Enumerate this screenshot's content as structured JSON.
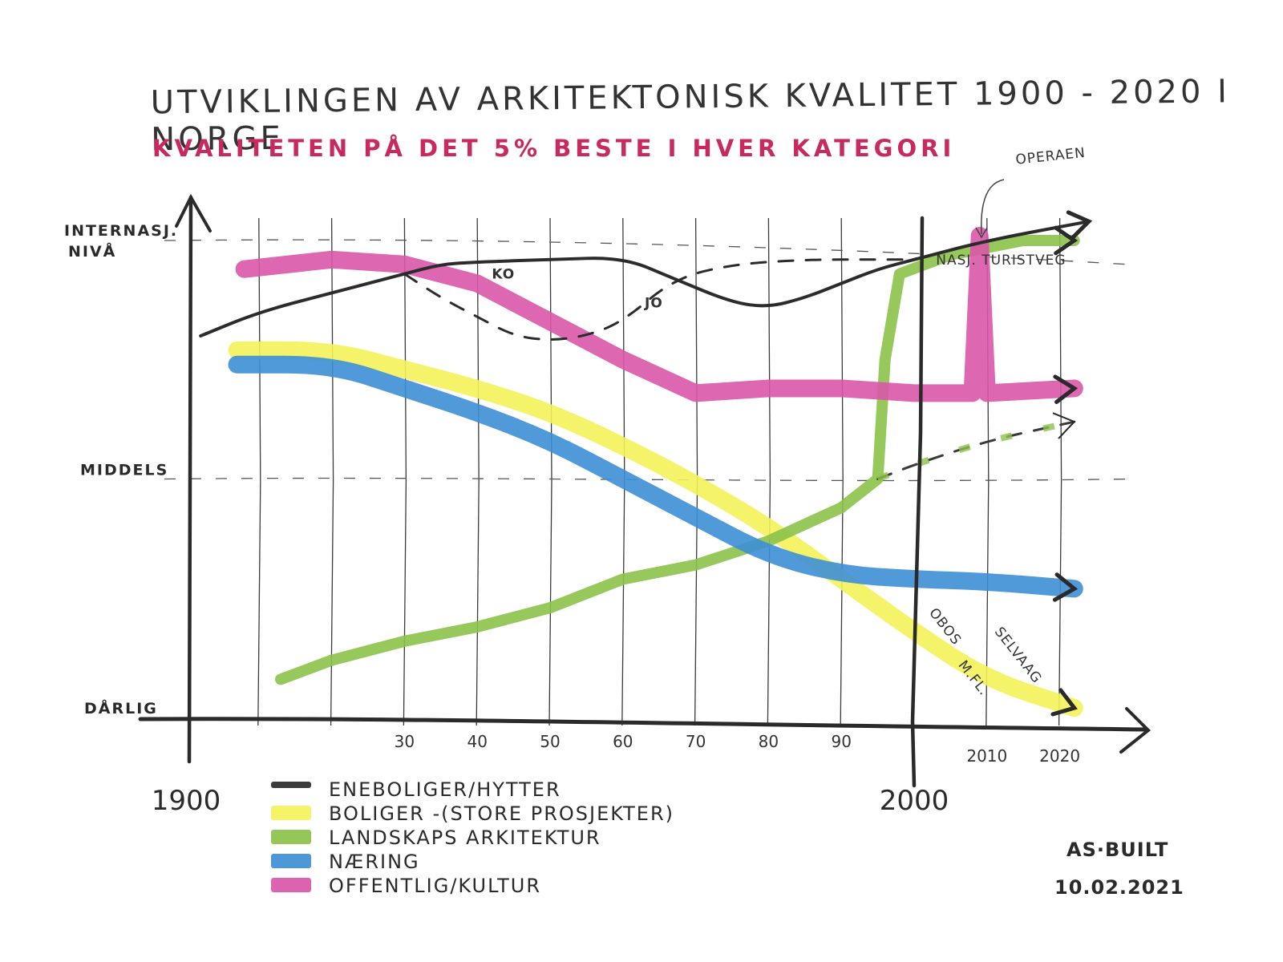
{
  "chart_data": {
    "type": "line",
    "title": "UTVIKLINGEN AV ARKITEKTONISK KVALITET 1900 - 2020 I NORGE",
    "subtitle": "KVALITETEN PÅ DET 5% BESTE I HVER KATEGORI",
    "xlabel": "",
    "ylabel": "",
    "xlim": [
      1900,
      2025
    ],
    "ylim": [
      0,
      100
    ],
    "grid": true,
    "y_levels": [
      {
        "label": "DÅRLIG",
        "value": 0
      },
      {
        "label": "MIDDELS",
        "value": 50
      },
      {
        "label": "INTERNASJ. NIVÅ",
        "value": 100
      }
    ],
    "x_ticks": [
      {
        "year": 1930,
        "label": "30"
      },
      {
        "year": 1940,
        "label": "40"
      },
      {
        "year": 1950,
        "label": "50"
      },
      {
        "year": 1960,
        "label": "60"
      },
      {
        "year": 1970,
        "label": "70"
      },
      {
        "year": 1980,
        "label": "80"
      },
      {
        "year": 1990,
        "label": "90"
      },
      {
        "year": 2010,
        "label": "2010"
      },
      {
        "year": 2020,
        "label": "2020"
      }
    ],
    "x_major_labels": [
      {
        "year": 1900,
        "label": "1900"
      },
      {
        "year": 2000,
        "label": "2000"
      }
    ],
    "series": [
      {
        "name": "ENEBOLIGER/HYTTER",
        "color": "#2b2b2b",
        "style": "thin",
        "x": [
          1902,
          1910,
          1920,
          1930,
          1935,
          1940,
          1950,
          1960,
          1967,
          1975,
          1980,
          1985,
          1990,
          1995,
          2000,
          2010,
          2024
        ],
        "values": [
          80,
          85,
          89,
          93,
          95,
          95.5,
          96,
          96.5,
          92,
          87,
          86,
          88,
          91,
          94,
          96,
          100,
          104
        ],
        "annotation": "KO"
      },
      {
        "name": "ENEBOLIGER/HYTTER (JO)",
        "color": "#2b2b2b",
        "style": "dashed",
        "x": [
          1930,
          1935,
          1940,
          1945,
          1950,
          1955,
          1960,
          1967,
          1975,
          1985,
          1995,
          2000
        ],
        "values": [
          93,
          88,
          84,
          80,
          79,
          80,
          83,
          92,
          95,
          96,
          96,
          96
        ],
        "annotation": "JO"
      },
      {
        "name": "BOLIGER (STORE PROSJEKTER)",
        "color": "#f4f25a",
        "style": "marker",
        "x": [
          1907,
          1920,
          1930,
          1940,
          1950,
          1960,
          1970,
          1980,
          1990,
          2000,
          2010,
          2022
        ],
        "values": [
          77,
          77,
          73,
          69,
          64,
          57,
          49,
          40,
          29,
          18,
          8,
          2
        ]
      },
      {
        "name": "LANDSKAPSARKITEKTUR",
        "color": "#8cc24a",
        "style": "marker",
        "x": [
          1913,
          1920,
          1930,
          1940,
          1950,
          1960,
          1970,
          1980,
          1990,
          1995,
          1996,
          1998,
          2005,
          2015,
          2022
        ],
        "values": [
          8,
          12,
          16,
          19,
          23,
          29,
          32,
          37,
          44,
          50,
          75,
          93,
          97,
          100,
          100
        ],
        "annotation": "NASJ. TURISTVEG"
      },
      {
        "name": "LANDSKAPSARKITEKTUR (alternativ)",
        "color": "#8cc24a",
        "style": "dashed",
        "x": [
          1995,
          2000,
          2010,
          2022
        ],
        "values": [
          50,
          53,
          58,
          62
        ]
      },
      {
        "name": "NÆRING",
        "color": "#3d8fd6",
        "style": "marker",
        "x": [
          1907,
          1920,
          1930,
          1940,
          1950,
          1960,
          1970,
          1980,
          1990,
          2000,
          2010,
          2022
        ],
        "values": [
          74,
          74,
          69,
          64,
          58,
          50,
          42,
          34,
          30,
          29,
          28.5,
          27
        ]
      },
      {
        "name": "OFFENTLIG/KULTUR",
        "color": "#d957a8",
        "style": "marker",
        "x": [
          1908,
          1920,
          1930,
          1940,
          1950,
          1960,
          1970,
          1980,
          1990,
          2000,
          2008,
          2009,
          2010,
          2022
        ],
        "values": [
          94,
          96,
          95,
          91,
          83,
          75,
          68,
          69,
          69,
          68,
          68,
          101,
          68,
          69
        ],
        "annotation": "OPERAEN"
      }
    ],
    "annotations": [
      {
        "text": "KO",
        "x": 1942,
        "y": 92
      },
      {
        "text": "JO",
        "x": 1963,
        "y": 86
      },
      {
        "text": "OPERAEN",
        "x": 2014,
        "y": 116
      },
      {
        "text": "NASJ. TURISTVEG",
        "x": 2003,
        "y": 95
      },
      {
        "text": "OBOS",
        "x": 2002,
        "y": 22
      },
      {
        "text": "M.FL.",
        "x": 2006,
        "y": 11
      },
      {
        "text": "SELVAAG",
        "x": 2011,
        "y": 18
      }
    ],
    "legend": {
      "placement": "bottom-left",
      "entries": [
        {
          "label": "ENEBOLIGER/HYTTER",
          "color": "#2b2b2b"
        },
        {
          "label": "BOLIGER -(STORE PROSJEKTER)",
          "color": "#f4f25a"
        },
        {
          "label": "LANDSKAPS ARKITEKTUR",
          "color": "#8cc24a"
        },
        {
          "label": "NÆRING",
          "color": "#3d8fd6"
        },
        {
          "label": "OFFENTLIG/KULTUR",
          "color": "#d957a8"
        }
      ]
    },
    "signature": {
      "line1": "AS·BUILT",
      "line2": "10.02.2021"
    }
  }
}
